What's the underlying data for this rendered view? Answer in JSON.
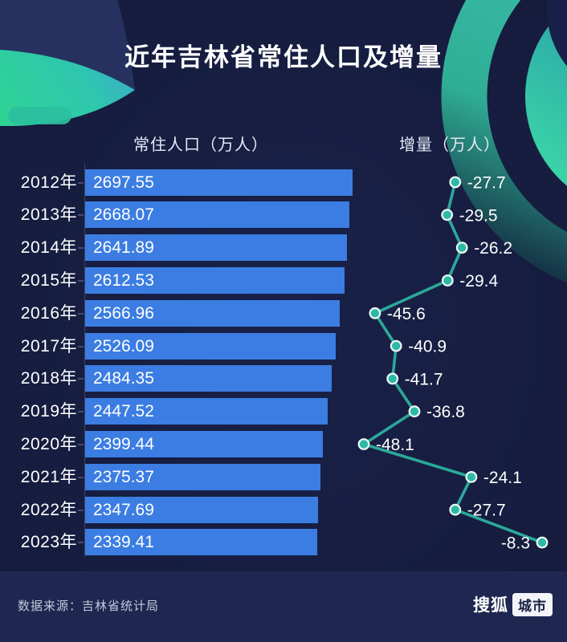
{
  "title": "近年吉林省常住人口及增量",
  "columns": {
    "population": "常住人口（万人）",
    "increment": "增量（万人）"
  },
  "footer": {
    "source": "数据来源：吉林省统计局",
    "logo_text": "搜狐",
    "logo_badge": "城市"
  },
  "colors": {
    "background": "#151c3e",
    "background_light_wedge": "#26315f",
    "footer_band": "#1e2750",
    "bar": "#3b7de2",
    "line": "#2ba99a",
    "dot": "#2cb9a7",
    "accent_teal": "#2fd0a4",
    "text": "#ffffff"
  },
  "chart_data": {
    "type": "bar",
    "categories": [
      "2012年",
      "2013年",
      "2014年",
      "2015年",
      "2016年",
      "2017年",
      "2018年",
      "2019年",
      "2020年",
      "2021年",
      "2022年",
      "2023年"
    ],
    "series": [
      {
        "name": "常住人口（万人）",
        "type": "bar",
        "values": [
          2697.55,
          2668.07,
          2641.89,
          2612.53,
          2566.96,
          2526.09,
          2484.35,
          2447.52,
          2399.44,
          2375.37,
          2347.69,
          2339.41
        ]
      },
      {
        "name": "增量（万人）",
        "type": "line",
        "values": [
          -27.7,
          -29.5,
          -26.2,
          -29.4,
          -45.6,
          -40.9,
          -41.7,
          -36.8,
          -48.1,
          -24.1,
          -27.7,
          -8.3
        ]
      }
    ],
    "xlabel": "",
    "ylabel": "",
    "bar_axis_range": [
      0,
      2697.55
    ],
    "increment_axis_range": [
      -48.1,
      -8.3
    ],
    "grid": false,
    "legend_position": "column-headers"
  }
}
